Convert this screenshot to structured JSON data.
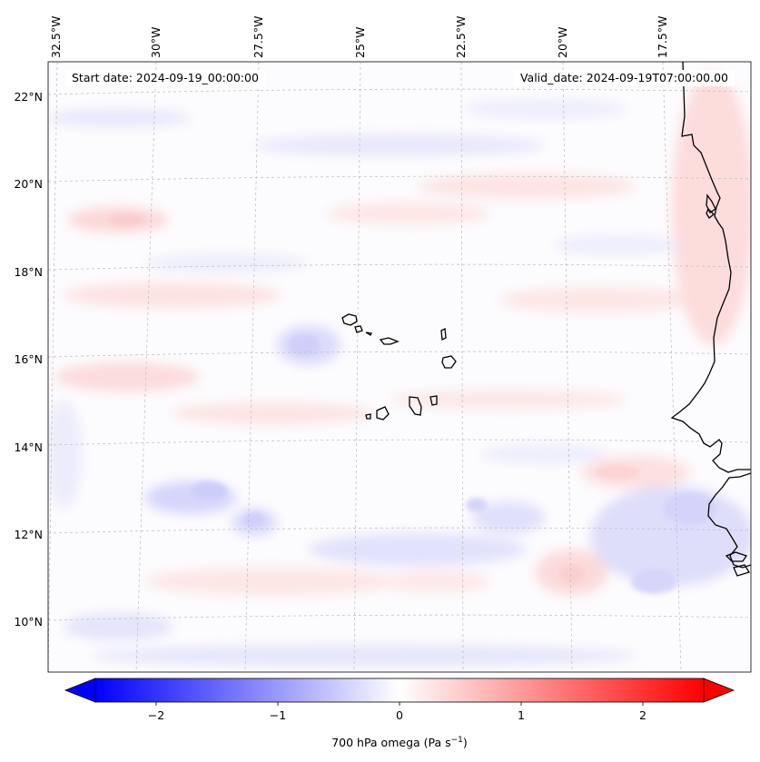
{
  "map": {
    "top_lon_labels": [
      "32.5°W",
      "30°W",
      "27.5°W",
      "25°W",
      "22.5°W",
      "20°W",
      "17.5°W"
    ],
    "left_lat_labels": [
      "22°N",
      "20°N",
      "18°N",
      "16°N",
      "14°N",
      "12°N",
      "10°N"
    ],
    "start_date": "Start date: 2024-09-19_00:00:00",
    "valid_date": "Valid_date: 2024-09-19T07:00:00.00"
  },
  "colorbar": {
    "label": "700 hPa omega (Pa s",
    "label_superscript": "−1",
    "label_suffix": ")",
    "ticks": [
      "−2",
      "−1",
      "0",
      "1",
      "2"
    ],
    "tick_values": [
      -2,
      -1,
      0,
      1,
      2
    ],
    "vmin": -2.5,
    "vmax": 2.5,
    "colormap": "bwr",
    "extend": "both"
  },
  "colors": {
    "coastline": "#000000",
    "gridline": "#bbbbbb",
    "negative_max": "#0000ff",
    "positive_max": "#ff0000",
    "neutral": "#ffffff"
  }
}
